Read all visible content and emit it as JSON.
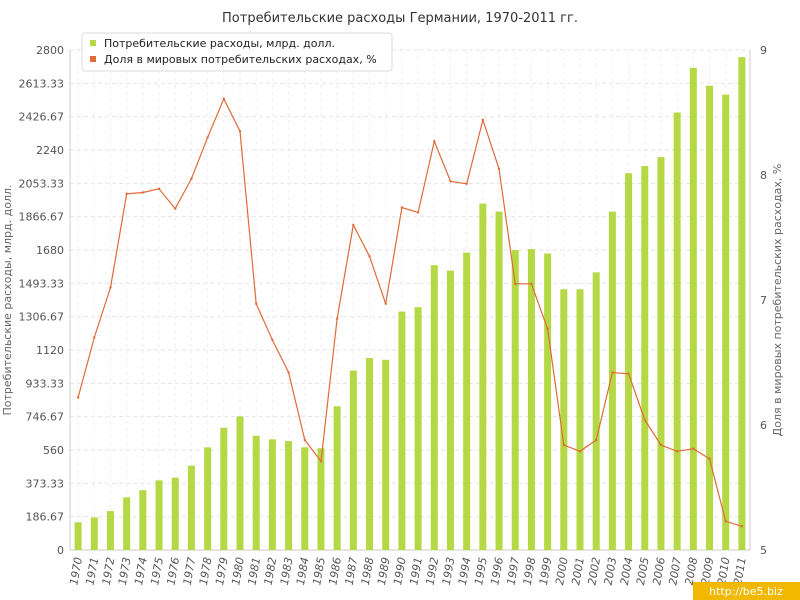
{
  "chart_data": {
    "type": "bar",
    "title": "Потребительские расходы Германии, 1970-2011 гг.",
    "ylabel": "Потребительские расходы, млрд. долл.",
    "y2label": "Доля в мировых потребительских расходах, %",
    "ylim": [
      0,
      2800
    ],
    "y2lim": [
      5,
      9
    ],
    "yticks": [
      "0",
      "186.67",
      "373.33",
      "560",
      "746.67",
      "933.33",
      "1120",
      "1306.67",
      "1493.33",
      "1680",
      "1866.67",
      "2053.33",
      "2240",
      "2426.67",
      "2613.33",
      "2800"
    ],
    "y2ticks": [
      "5",
      "6",
      "7",
      "8",
      "9"
    ],
    "grid": true,
    "legend_position": "top-left",
    "categories": [
      "1970",
      "1971",
      "1972",
      "1973",
      "1974",
      "1975",
      "1976",
      "1977",
      "1978",
      "1979",
      "1980",
      "1981",
      "1982",
      "1983",
      "1984",
      "1985",
      "1986",
      "1987",
      "1988",
      "1989",
      "1990",
      "1991",
      "1992",
      "1993",
      "1994",
      "1995",
      "1996",
      "1997",
      "1998",
      "1999",
      "2000",
      "2001",
      "2002",
      "2003",
      "2004",
      "2005",
      "2006",
      "2007",
      "2008",
      "2009",
      "2010",
      "2011"
    ],
    "series": [
      {
        "name": "Потребительские расходы, млрд. долл.",
        "type": "bar",
        "color": "#b5d944",
        "values": [
          155,
          182,
          218,
          295,
          335,
          390,
          405,
          472,
          575,
          685,
          748,
          640,
          620,
          610,
          575,
          570,
          805,
          1005,
          1075,
          1065,
          1335,
          1360,
          1595,
          1565,
          1665,
          1940,
          1895,
          1680,
          1685,
          1660,
          1460,
          1460,
          1555,
          1895,
          2110,
          2150,
          2200,
          2450,
          2700,
          2600,
          2550,
          2760
        ]
      },
      {
        "name": "Доля в мировых потребительских расходах, %",
        "type": "line",
        "axis": "right",
        "color": "#e06a3a",
        "values": [
          6.22,
          6.7,
          7.1,
          7.85,
          7.86,
          7.89,
          7.73,
          7.97,
          8.3,
          8.61,
          8.35,
          6.97,
          6.68,
          6.42,
          5.88,
          5.71,
          6.85,
          7.6,
          7.35,
          6.97,
          7.74,
          7.7,
          8.27,
          7.95,
          7.93,
          8.44,
          8.05,
          7.13,
          7.13,
          6.77,
          5.84,
          5.79,
          5.88,
          6.42,
          6.41,
          6.04,
          5.84,
          5.79,
          5.81,
          5.73,
          5.23,
          5.19
        ]
      }
    ]
  },
  "watermark": "http://be5.biz"
}
